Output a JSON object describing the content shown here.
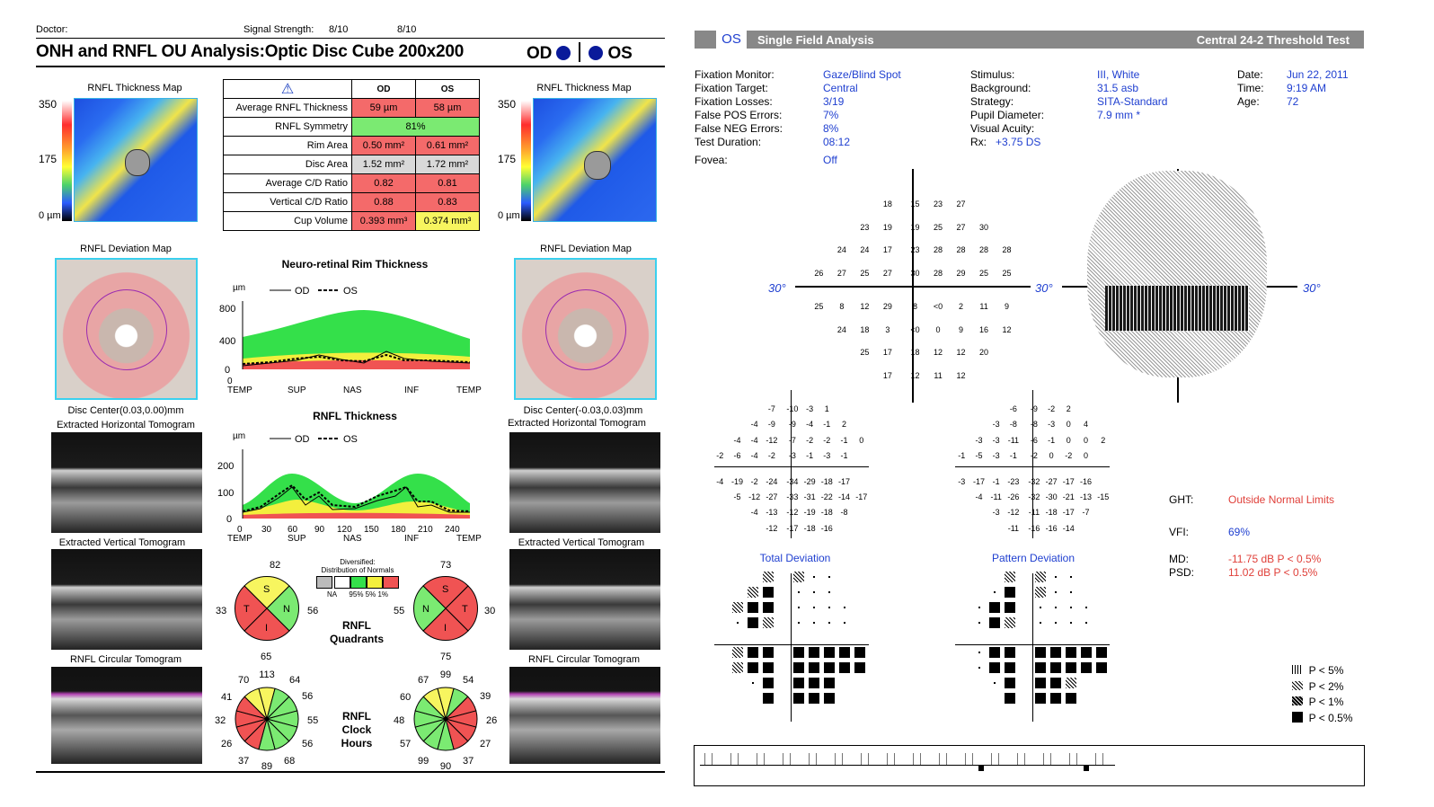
{
  "left": {
    "doctor_label": "Doctor:",
    "signal_label": "Signal Strength:",
    "signal_od": "8/10",
    "signal_os": "8/10",
    "title": "ONH and RNFL OU Analysis:Optic Disc Cube 200x200",
    "od": "OD",
    "os": "OS",
    "thickness_map_label": "RNFL Thickness Map",
    "scale": [
      "350",
      "175",
      "0 µm"
    ],
    "table": {
      "col_od": "OD",
      "col_os": "OS",
      "rows": [
        {
          "label": "Average RNFL Thickness",
          "od": "59 µm",
          "os": "58 µm"
        },
        {
          "label": "RNFL Symmetry",
          "both": "81%"
        },
        {
          "label": "Rim Area",
          "od": "0.50 mm²",
          "os": "0.61 mm²"
        },
        {
          "label": "Disc Area",
          "od": "1.52 mm²",
          "os": "1.72 mm²"
        },
        {
          "label": "Average C/D Ratio",
          "od": "0.82",
          "os": "0.81"
        },
        {
          "label": "Vertical C/D Ratio",
          "od": "0.88",
          "os": "0.83"
        },
        {
          "label": "Cup Volume",
          "od": "0.393 mm³",
          "os": "0.374 mm³"
        }
      ]
    },
    "deviation_map_label": "RNFL Deviation Map",
    "disc_center_od": "Disc Center(0.03,0.00)mm",
    "disc_center_os": "Disc Center(-0.03,0.03)mm",
    "horiz_tomo": "Extracted Horizontal Tomogram",
    "vert_tomo": "Extracted Vertical Tomogram",
    "circ_tomo": "RNFL Circular Tomogram",
    "rim_chart": {
      "title": "Neuro-retinal Rim Thickness",
      "unit": "µm",
      "legend_od": "OD",
      "legend_os": "OS",
      "yticks": [
        "800",
        "400",
        "0"
      ],
      "xticks": [
        "TEMP",
        "SUP",
        "NAS",
        "INF",
        "TEMP"
      ]
    },
    "rnfl_chart": {
      "title": "RNFL Thickness",
      "unit": "µm",
      "legend_od": "OD",
      "legend_os": "OS",
      "yticks": [
        "200",
        "100",
        "0"
      ],
      "xnums": [
        "0",
        "30",
        "60",
        "90",
        "120",
        "150",
        "180",
        "210",
        "240"
      ],
      "xticks": [
        "TEMP",
        "SUP",
        "NAS",
        "INF",
        "TEMP"
      ]
    },
    "legend": {
      "title1": "Diversified:",
      "title2": "Distribution of Normals",
      "labels": [
        "NA",
        "95%",
        "5%",
        "1%"
      ]
    },
    "quadrants": {
      "label1": "RNFL",
      "label2": "Quadrants",
      "od": {
        "s": "82",
        "t": "33",
        "n": "56",
        "i": "65",
        "S": "S",
        "T": "T",
        "N": "N",
        "I": "I"
      },
      "os": {
        "s": "73",
        "n": "55",
        "t": "30",
        "i": "75",
        "S": "S",
        "T": "T",
        "N": "N",
        "I": "I"
      }
    },
    "clock": {
      "label1": "RNFL",
      "label2": "Clock",
      "label3": "Hours",
      "od": [
        "113",
        "64",
        "56",
        "55",
        "56",
        "68",
        "89",
        "37",
        "26",
        "32",
        "41",
        "70"
      ],
      "os": [
        "99",
        "54",
        "39",
        "26",
        "27",
        "37",
        "90",
        "99",
        "57",
        "48",
        "60",
        "67"
      ]
    }
  },
  "right": {
    "eye": "OS",
    "title": "Single Field Analysis",
    "test": "Central 24-2 Threshold Test",
    "info_col1": [
      {
        "k": "Fixation Monitor:",
        "v": "Gaze/Blind Spot"
      },
      {
        "k": "Fixation Target:",
        "v": "Central"
      },
      {
        "k": "Fixation Losses:",
        "v": "3/19"
      },
      {
        "k": "False POS Errors:",
        "v": "7%"
      },
      {
        "k": "False NEG Errors:",
        "v": "8%"
      },
      {
        "k": "Test Duration:",
        "v": "08:12"
      }
    ],
    "fovea_k": "Fovea:",
    "fovea_v": "Off",
    "info_col2": [
      {
        "k": "Stimulus:",
        "v": "III, White"
      },
      {
        "k": "Background:",
        "v": "31.5 asb"
      },
      {
        "k": "Strategy:",
        "v": "SITA-Standard"
      },
      {
        "k": "Pupil Diameter:",
        "v": "7.9 mm *"
      },
      {
        "k": "Visual Acuity:",
        "v": ""
      }
    ],
    "rx_k": "Rx:",
    "rx_v": "+3.75 DS",
    "info_col3": [
      {
        "k": "Date:",
        "v": "Jun 22, 2011"
      },
      {
        "k": "Time:",
        "v": "9:19 AM"
      },
      {
        "k": "Age:",
        "v": "72"
      }
    ],
    "deg": "30°",
    "threshold_rows": [
      [
        "18",
        "15",
        "23",
        "27"
      ],
      [
        "23",
        "19",
        "19",
        "25",
        "27",
        "30"
      ],
      [
        "24",
        "24",
        "17",
        "23",
        "28",
        "28",
        "28",
        "28"
      ],
      [
        "26",
        "27",
        "25",
        "27",
        "30",
        "28",
        "29",
        "25",
        "25"
      ],
      [
        "25",
        "8",
        "12",
        "29",
        "8",
        "<0",
        "2",
        "11",
        "9"
      ],
      [
        "24",
        "18",
        "3",
        "<0",
        "0",
        "9",
        "16",
        "12"
      ],
      [
        "25",
        "17",
        "18",
        "12",
        "12",
        "20"
      ],
      [
        "17",
        "12",
        "11",
        "12"
      ]
    ],
    "td_rows": [
      [
        "-7",
        "-10",
        "-3",
        "1"
      ],
      [
        "-4",
        "-9",
        "-9",
        "-4",
        "-1",
        "2"
      ],
      [
        "-4",
        "-4",
        "-12",
        "-7",
        "-2",
        "-2",
        "-1",
        "0"
      ],
      [
        "-2",
        "-6",
        "-4",
        "-2",
        "-3",
        "-1",
        "-3",
        "-1"
      ],
      [
        "-4",
        "-19",
        "-2",
        "-24",
        "-34",
        "-29",
        "-18",
        "-17"
      ],
      [
        "-5",
        "-12",
        "-27",
        "-33",
        "-31",
        "-22",
        "-14",
        "-17"
      ],
      [
        "-4",
        "-13",
        "-12",
        "-19",
        "-18",
        "-8"
      ],
      [
        "-12",
        "-17",
        "-18",
        "-16"
      ]
    ],
    "pd_rows": [
      [
        "-6",
        "-9",
        "-2",
        "2"
      ],
      [
        "-3",
        "-8",
        "-8",
        "-3",
        "0",
        "4"
      ],
      [
        "-3",
        "-3",
        "-11",
        "-6",
        "-1",
        "0",
        "0",
        "2"
      ],
      [
        "-1",
        "-5",
        "-3",
        "-1",
        "-2",
        "0",
        "-2",
        "0"
      ],
      [
        "-3",
        "-17",
        "-1",
        "-23",
        "-32",
        "-27",
        "-17",
        "-16"
      ],
      [
        "-4",
        "-11",
        "-26",
        "-32",
        "-30",
        "-21",
        "-13",
        "-15"
      ],
      [
        "-3",
        "-12",
        "-11",
        "-18",
        "-17",
        "-7"
      ],
      [
        "-11",
        "-16",
        "-16",
        "-14"
      ]
    ],
    "total_dev": "Total Deviation",
    "pattern_dev": "Pattern Deviation",
    "ght_k": "GHT:",
    "ght_v": "Outside Normal Limits",
    "vfi_k": "VFI:",
    "vfi_v": "69%",
    "md_k": "MD:",
    "md_v": "-11.75 dB P < 0.5%",
    "psd_k": "PSD:",
    "psd_v": "11.02 dB P < 0.5%",
    "plegend": [
      "P < 5%",
      "P < 2%",
      "P < 1%",
      "P < 0.5%"
    ]
  }
}
